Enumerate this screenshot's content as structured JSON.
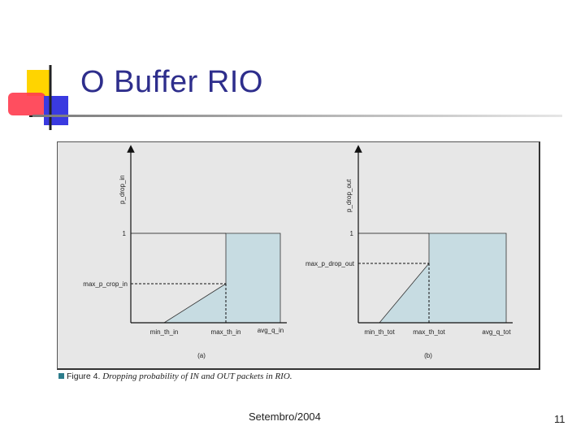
{
  "slide": {
    "title": "O Buffer RIO",
    "footer_date": "Setembro/2004",
    "page_number": "11"
  },
  "colors": {
    "title": "#2e2e8c",
    "logo_yellow": "#ffd400",
    "logo_red": "#ff3b4e",
    "logo_blue": "#3a3ae0",
    "figure_bg": "#e7e7e7",
    "region_fill": "#c7dce2",
    "caption_marker": "#2d7d8c"
  },
  "figure": {
    "caption_label": "Figure 4.",
    "caption_text": "Dropping probability of IN and OUT packets in RIO.",
    "panel_a": {
      "y_axis_label": "p_drop_in",
      "y_tick_one": "1",
      "y_tick_max": "max_p_crop_in",
      "x_tick_min": "min_th_in",
      "x_tick_max": "max_th_in",
      "x_axis_label": "avg_q_in",
      "sublabel": "(a)"
    },
    "panel_b": {
      "y_axis_label": "p_drop_out",
      "y_tick_one": "1",
      "y_tick_max": "max_p_drop_out",
      "x_tick_min": "min_th_tot",
      "x_tick_max": "max_th_tot",
      "x_axis_label": "avg_q_tot",
      "sublabel": "(b)"
    }
  }
}
